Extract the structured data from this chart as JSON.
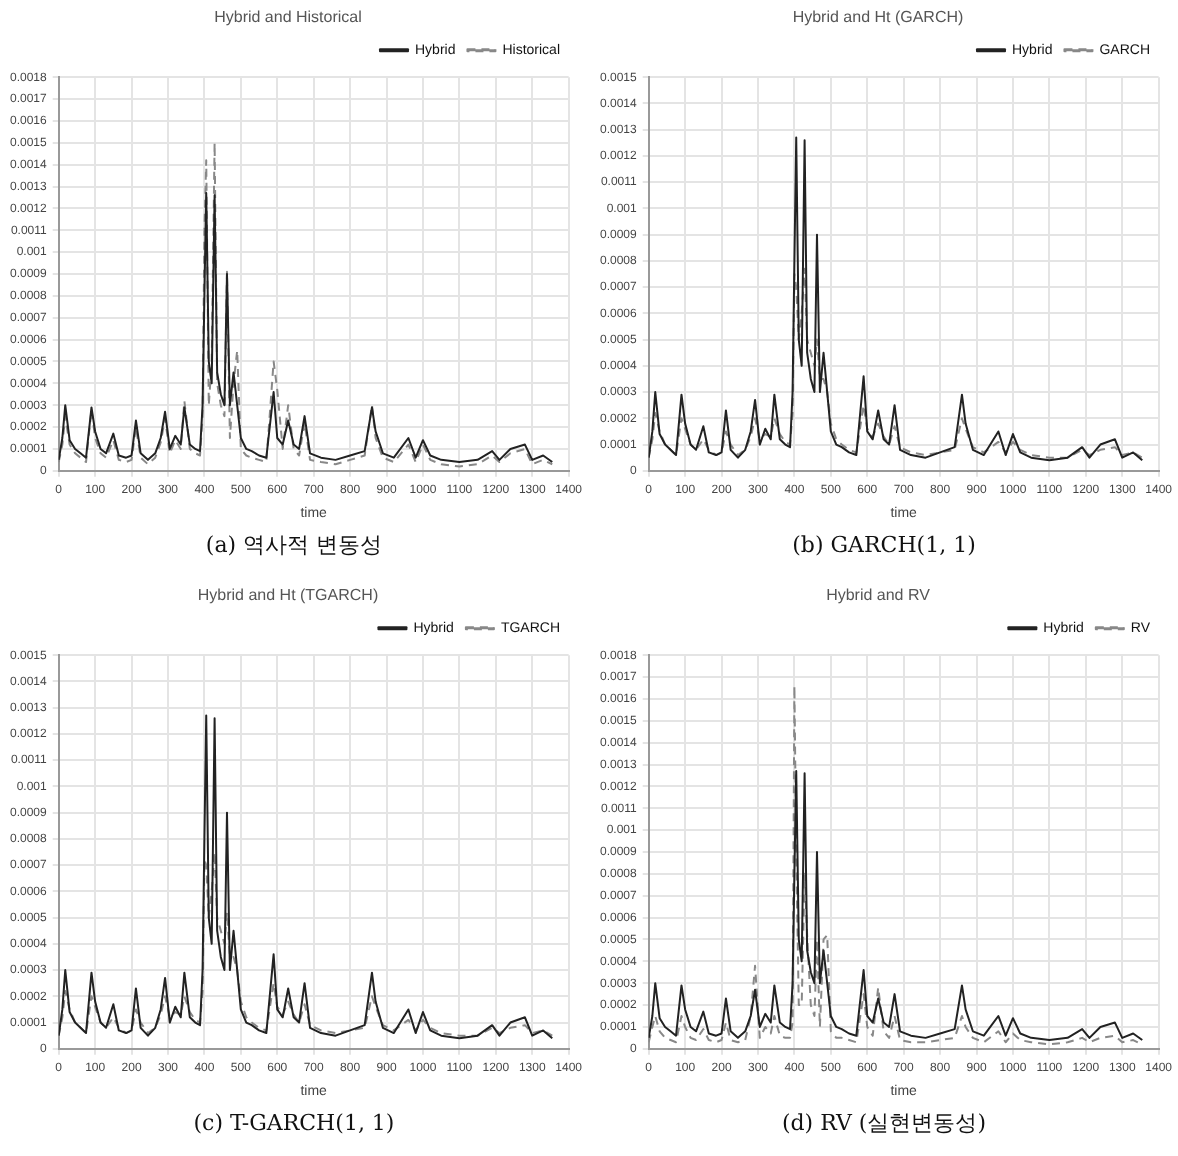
{
  "chart_data": [
    {
      "type": "line",
      "title": "Hybrid and Historical",
      "xlabel": "time",
      "annotations": [
        "(a) 역사적 변동성"
      ],
      "grid": true,
      "legend": "top right",
      "marker": "none",
      "xlim": [
        0,
        1400
      ],
      "xticks": [
        0,
        100,
        200,
        300,
        400,
        500,
        600,
        700,
        800,
        900,
        1000,
        1100,
        1200,
        1300,
        1400
      ],
      "ylim": [
        0,
        0.0018
      ],
      "yticks": [
        0,
        0.0001,
        0.0002,
        0.0003,
        0.0004,
        0.0005,
        0.0006,
        0.0007,
        0.0008,
        0.0009,
        0.001,
        0.0011,
        0.0012,
        0.0013,
        0.0014,
        0.0015,
        0.0016,
        0.0017,
        0.0018
      ],
      "x": [
        0,
        10,
        18,
        30,
        45,
        60,
        75,
        90,
        100,
        115,
        130,
        150,
        165,
        185,
        200,
        212,
        225,
        245,
        265,
        280,
        292,
        305,
        320,
        335,
        345,
        360,
        375,
        388,
        395,
        400,
        405,
        412,
        420,
        428,
        435,
        445,
        455,
        462,
        470,
        480,
        490,
        500,
        515,
        530,
        550,
        570,
        590,
        600,
        615,
        630,
        645,
        660,
        675,
        690,
        720,
        760,
        800,
        840,
        860,
        870,
        890,
        920,
        960,
        980,
        1000,
        1020,
        1050,
        1100,
        1150,
        1190,
        1210,
        1240,
        1280,
        1300,
        1330,
        1355
      ],
      "series": [
        {
          "name": "Hybrid",
          "color": "#222222",
          "line_style": "solid",
          "values": [
            5e-05,
            0.00015,
            0.0003,
            0.00014,
            0.0001,
            8e-05,
            6e-05,
            0.00029,
            0.00018,
            0.0001,
            8e-05,
            0.00017,
            7e-05,
            6e-05,
            7e-05,
            0.00023,
            8e-05,
            5e-05,
            8e-05,
            0.00015,
            0.00027,
            0.0001,
            0.00016,
            0.00012,
            0.00029,
            0.00012,
            0.0001,
            9e-05,
            0.0003,
            0.0008,
            0.00127,
            0.0005,
            0.0004,
            0.00126,
            0.00045,
            0.00035,
            0.0003,
            0.0009,
            0.0003,
            0.00045,
            0.0003,
            0.00015,
            0.0001,
            9e-05,
            7e-05,
            6e-05,
            0.00036,
            0.00015,
            0.00012,
            0.00023,
            0.00012,
            0.0001,
            0.00025,
            8e-05,
            6e-05,
            5e-05,
            7e-05,
            9e-05,
            0.00029,
            0.00018,
            8e-05,
            6e-05,
            0.00015,
            6e-05,
            0.00014,
            7e-05,
            5e-05,
            4e-05,
            5e-05,
            9e-05,
            5e-05,
            0.0001,
            0.00012,
            5e-05,
            7e-05,
            4e-05
          ]
        },
        {
          "name": "Historical",
          "color": "#888888",
          "line_style": "dashed",
          "values": [
            4e-05,
            0.00012,
            0.00025,
            0.00012,
            8e-05,
            6e-05,
            4e-05,
            0.00028,
            0.00015,
            8e-05,
            6e-05,
            0.00014,
            5e-05,
            4e-05,
            5e-05,
            0.0002,
            6e-05,
            3e-05,
            6e-05,
            0.00013,
            0.00024,
            8e-05,
            0.00014,
            0.0001,
            0.00032,
            0.0001,
            8e-05,
            7e-05,
            0.00025,
            0.0011,
            0.00142,
            0.0003,
            0.0005,
            0.0015,
            0.0004,
            0.0003,
            0.00025,
            0.00091,
            0.00015,
            0.0004,
            0.00055,
            0.0001,
            7e-05,
            6e-05,
            5e-05,
            4e-05,
            0.0005,
            0.00037,
            0.0001,
            0.0003,
            0.0001,
            7e-05,
            0.00022,
            5e-05,
            4e-05,
            3e-05,
            5e-05,
            7e-05,
            0.0003,
            0.00015,
            6e-05,
            4e-05,
            0.00012,
            4e-05,
            0.00012,
            5e-05,
            3e-05,
            2e-05,
            3e-05,
            7e-05,
            4e-05,
            8e-05,
            0.0001,
            3e-05,
            5e-05,
            3e-05
          ]
        }
      ]
    },
    {
      "type": "line",
      "title": "Hybrid and Ht (GARCH)",
      "xlabel": "time",
      "annotations": [
        "(b) GARCH(1, 1)"
      ],
      "grid": true,
      "legend": "top right",
      "marker": "none",
      "xlim": [
        0,
        1400
      ],
      "xticks": [
        0,
        100,
        200,
        300,
        400,
        500,
        600,
        700,
        800,
        900,
        1000,
        1100,
        1200,
        1300,
        1400
      ],
      "ylim": [
        0,
        0.0015
      ],
      "yticks": [
        0,
        0.0001,
        0.0002,
        0.0003,
        0.0004,
        0.0005,
        0.0006,
        0.0007,
        0.0008,
        0.0009,
        0.001,
        0.0011,
        0.0012,
        0.0013,
        0.0014,
        0.0015
      ],
      "x": [
        0,
        10,
        18,
        30,
        45,
        60,
        75,
        90,
        100,
        115,
        130,
        150,
        165,
        185,
        200,
        212,
        225,
        245,
        265,
        280,
        292,
        305,
        320,
        335,
        345,
        360,
        375,
        388,
        395,
        400,
        405,
        412,
        420,
        428,
        435,
        445,
        455,
        462,
        470,
        480,
        490,
        500,
        515,
        530,
        550,
        570,
        590,
        600,
        615,
        630,
        645,
        660,
        675,
        690,
        720,
        760,
        800,
        840,
        860,
        870,
        890,
        920,
        960,
        980,
        1000,
        1020,
        1050,
        1100,
        1150,
        1190,
        1210,
        1240,
        1280,
        1300,
        1330,
        1355
      ],
      "series": [
        {
          "name": "Hybrid",
          "color": "#222222",
          "line_style": "solid",
          "values": [
            5e-05,
            0.00015,
            0.0003,
            0.00014,
            0.0001,
            8e-05,
            6e-05,
            0.00029,
            0.00018,
            0.0001,
            8e-05,
            0.00017,
            7e-05,
            6e-05,
            7e-05,
            0.00023,
            8e-05,
            5e-05,
            8e-05,
            0.00015,
            0.00027,
            0.0001,
            0.00016,
            0.00012,
            0.00029,
            0.00012,
            0.0001,
            9e-05,
            0.0003,
            0.0008,
            0.00127,
            0.0005,
            0.0004,
            0.00126,
            0.00045,
            0.00035,
            0.0003,
            0.0009,
            0.0003,
            0.00045,
            0.0003,
            0.00015,
            0.0001,
            9e-05,
            7e-05,
            6e-05,
            0.00036,
            0.00015,
            0.00012,
            0.00023,
            0.00012,
            0.0001,
            0.00025,
            8e-05,
            6e-05,
            5e-05,
            7e-05,
            9e-05,
            0.00029,
            0.00018,
            8e-05,
            6e-05,
            0.00015,
            6e-05,
            0.00014,
            7e-05,
            5e-05,
            4e-05,
            5e-05,
            9e-05,
            5e-05,
            0.0001,
            0.00012,
            5e-05,
            7e-05,
            4e-05
          ]
        },
        {
          "name": "GARCH",
          "color": "#888888",
          "line_style": "dashed",
          "values": [
            5e-05,
            0.00012,
            0.00022,
            0.00015,
            0.0001,
            8e-05,
            6e-05,
            0.0002,
            0.00016,
            0.0001,
            8e-05,
            0.00012,
            8e-05,
            6e-05,
            7e-05,
            0.00015,
            0.0001,
            6e-05,
            8e-05,
            0.00013,
            0.0002,
            0.00012,
            0.00014,
            0.00013,
            0.0002,
            0.00014,
            0.00011,
            0.0001,
            0.00022,
            0.00075,
            0.0007,
            0.0005,
            0.0006,
            0.00077,
            0.0005,
            0.00045,
            0.0004,
            0.0005,
            0.00035,
            0.00035,
            0.0003,
            0.00018,
            0.00012,
            0.0001,
            8e-05,
            7e-05,
            0.00025,
            0.00016,
            0.00013,
            0.00018,
            0.00013,
            0.0001,
            0.00017,
            9e-05,
            7e-05,
            6e-05,
            7e-05,
            8e-05,
            0.0002,
            0.00016,
            9e-05,
            7e-05,
            0.00011,
            7e-05,
            0.00011,
            8e-05,
            6e-05,
            5e-05,
            5e-05,
            8e-05,
            6e-05,
            8e-05,
            9e-05,
            6e-05,
            7e-05,
            5e-05
          ]
        }
      ]
    },
    {
      "type": "line",
      "title": "Hybrid and Ht (TGARCH)",
      "xlabel": "time",
      "annotations": [
        "(c) T-GARCH(1, 1)"
      ],
      "grid": true,
      "legend": "top right",
      "marker": "none",
      "xlim": [
        0,
        1400
      ],
      "xticks": [
        0,
        100,
        200,
        300,
        400,
        500,
        600,
        700,
        800,
        900,
        1000,
        1100,
        1200,
        1300,
        1400
      ],
      "ylim": [
        0,
        0.0015
      ],
      "yticks": [
        0,
        0.0001,
        0.0002,
        0.0003,
        0.0004,
        0.0005,
        0.0006,
        0.0007,
        0.0008,
        0.0009,
        0.001,
        0.0011,
        0.0012,
        0.0013,
        0.0014,
        0.0015
      ],
      "x": [
        0,
        10,
        18,
        30,
        45,
        60,
        75,
        90,
        100,
        115,
        130,
        150,
        165,
        185,
        200,
        212,
        225,
        245,
        265,
        280,
        292,
        305,
        320,
        335,
        345,
        360,
        375,
        388,
        395,
        400,
        405,
        412,
        420,
        428,
        435,
        445,
        455,
        462,
        470,
        480,
        490,
        500,
        515,
        530,
        550,
        570,
        590,
        600,
        615,
        630,
        645,
        660,
        675,
        690,
        720,
        760,
        800,
        840,
        860,
        870,
        890,
        920,
        960,
        980,
        1000,
        1020,
        1050,
        1100,
        1150,
        1190,
        1210,
        1240,
        1280,
        1300,
        1330,
        1355
      ],
      "series": [
        {
          "name": "Hybrid",
          "color": "#222222",
          "line_style": "solid",
          "values": [
            5e-05,
            0.00015,
            0.0003,
            0.00014,
            0.0001,
            8e-05,
            6e-05,
            0.00029,
            0.00018,
            0.0001,
            8e-05,
            0.00017,
            7e-05,
            6e-05,
            7e-05,
            0.00023,
            8e-05,
            5e-05,
            8e-05,
            0.00015,
            0.00027,
            0.0001,
            0.00016,
            0.00012,
            0.00029,
            0.00012,
            0.0001,
            9e-05,
            0.0003,
            0.0008,
            0.00127,
            0.0005,
            0.0004,
            0.00126,
            0.00045,
            0.00035,
            0.0003,
            0.0009,
            0.0003,
            0.00045,
            0.0003,
            0.00015,
            0.0001,
            9e-05,
            7e-05,
            6e-05,
            0.00036,
            0.00015,
            0.00012,
            0.00023,
            0.00012,
            0.0001,
            0.00025,
            8e-05,
            6e-05,
            5e-05,
            7e-05,
            9e-05,
            0.00029,
            0.00018,
            8e-05,
            6e-05,
            0.00015,
            6e-05,
            0.00014,
            7e-05,
            5e-05,
            4e-05,
            5e-05,
            9e-05,
            5e-05,
            0.0001,
            0.00012,
            5e-05,
            7e-05,
            4e-05
          ]
        },
        {
          "name": "TGARCH",
          "color": "#888888",
          "line_style": "dashed",
          "values": [
            5e-05,
            0.00012,
            0.00022,
            0.00015,
            0.0001,
            8e-05,
            6e-05,
            0.0002,
            0.00016,
            0.0001,
            8e-05,
            0.00012,
            8e-05,
            6e-05,
            7e-05,
            0.00015,
            0.0001,
            6e-05,
            8e-05,
            0.00013,
            0.0002,
            0.00012,
            0.00014,
            0.00013,
            0.0002,
            0.00014,
            0.00011,
            0.0001,
            0.00022,
            0.00072,
            0.0007,
            0.0005,
            0.0006,
            0.00075,
            0.0005,
            0.00045,
            0.0004,
            0.00052,
            0.00035,
            0.00035,
            0.0003,
            0.00018,
            0.00012,
            0.0001,
            8e-05,
            7e-05,
            0.00025,
            0.00016,
            0.00013,
            0.00018,
            0.00013,
            0.0001,
            0.00017,
            9e-05,
            7e-05,
            6e-05,
            7e-05,
            8e-05,
            0.0002,
            0.00016,
            9e-05,
            7e-05,
            0.00011,
            7e-05,
            0.00011,
            8e-05,
            6e-05,
            5e-05,
            5e-05,
            8e-05,
            6e-05,
            8e-05,
            9e-05,
            6e-05,
            7e-05,
            5e-05
          ]
        }
      ]
    },
    {
      "type": "line",
      "title": "Hybrid and RV",
      "xlabel": "time",
      "annotations": [
        "(d) RV (실현변동성)"
      ],
      "grid": true,
      "legend": "top right",
      "marker": "none",
      "xlim": [
        0,
        1400
      ],
      "xticks": [
        0,
        100,
        200,
        300,
        400,
        500,
        600,
        700,
        800,
        900,
        1000,
        1100,
        1200,
        1300,
        1400
      ],
      "ylim": [
        0,
        0.0018
      ],
      "yticks": [
        0,
        0.0001,
        0.0002,
        0.0003,
        0.0004,
        0.0005,
        0.0006,
        0.0007,
        0.0008,
        0.0009,
        0.001,
        0.0011,
        0.0012,
        0.0013,
        0.0014,
        0.0015,
        0.0016,
        0.0017,
        0.0018
      ],
      "x": [
        0,
        10,
        18,
        30,
        45,
        60,
        75,
        90,
        100,
        115,
        130,
        150,
        165,
        185,
        200,
        212,
        225,
        245,
        265,
        280,
        292,
        305,
        320,
        335,
        345,
        360,
        375,
        388,
        395,
        400,
        405,
        412,
        420,
        428,
        435,
        445,
        455,
        462,
        470,
        480,
        490,
        500,
        515,
        530,
        550,
        570,
        590,
        600,
        615,
        630,
        645,
        660,
        675,
        690,
        720,
        760,
        800,
        840,
        860,
        870,
        890,
        920,
        960,
        980,
        1000,
        1020,
        1050,
        1100,
        1150,
        1190,
        1210,
        1240,
        1280,
        1300,
        1330,
        1355
      ],
      "series": [
        {
          "name": "Hybrid",
          "color": "#222222",
          "line_style": "solid",
          "values": [
            5e-05,
            0.00015,
            0.0003,
            0.00014,
            0.0001,
            8e-05,
            6e-05,
            0.00029,
            0.00018,
            0.0001,
            8e-05,
            0.00017,
            7e-05,
            6e-05,
            7e-05,
            0.00023,
            8e-05,
            5e-05,
            8e-05,
            0.00015,
            0.00027,
            0.0001,
            0.00016,
            0.00012,
            0.00029,
            0.00012,
            0.0001,
            9e-05,
            0.0003,
            0.0008,
            0.00127,
            0.0005,
            0.0004,
            0.00126,
            0.00045,
            0.00035,
            0.0003,
            0.0009,
            0.0003,
            0.00045,
            0.0003,
            0.00015,
            0.0001,
            9e-05,
            7e-05,
            6e-05,
            0.00036,
            0.00015,
            0.00012,
            0.00023,
            0.00012,
            0.0001,
            0.00025,
            8e-05,
            6e-05,
            5e-05,
            7e-05,
            9e-05,
            0.00029,
            0.00018,
            8e-05,
            6e-05,
            0.00015,
            6e-05,
            0.00014,
            7e-05,
            5e-05,
            4e-05,
            5e-05,
            9e-05,
            5e-05,
            0.0001,
            0.00012,
            5e-05,
            7e-05,
            4e-05
          ]
        },
        {
          "name": "RV",
          "color": "#888888",
          "line_style": "dashed",
          "values": [
            3e-05,
            0.0001,
            0.00015,
            8e-05,
            5e-05,
            4e-05,
            3e-05,
            0.00015,
            0.0001,
            5e-05,
            4e-05,
            9e-05,
            4e-05,
            3e-05,
            4e-05,
            0.00012,
            4e-05,
            3e-05,
            4e-05,
            0.00015,
            0.00038,
            5e-05,
            0.0001,
            7e-05,
            0.00015,
            6e-05,
            5e-05,
            5e-05,
            0.00012,
            0.00166,
            0.0009,
            0.0002,
            0.0002,
            0.0008,
            0.00052,
            0.0002,
            0.00015,
            0.0005,
            0.0001,
            0.0005,
            0.00052,
            8e-05,
            5e-05,
            5e-05,
            4e-05,
            3e-05,
            0.00025,
            0.0001,
            6e-05,
            0.00028,
            8e-05,
            5e-05,
            0.00015,
            4e-05,
            3e-05,
            3e-05,
            4e-05,
            5e-05,
            0.00015,
            0.0001,
            5e-05,
            3e-05,
            8e-05,
            3e-05,
            7e-05,
            4e-05,
            3e-05,
            2e-05,
            3e-05,
            5e-05,
            3e-05,
            5e-05,
            6e-05,
            3e-05,
            4e-05,
            2e-05
          ]
        }
      ]
    }
  ]
}
